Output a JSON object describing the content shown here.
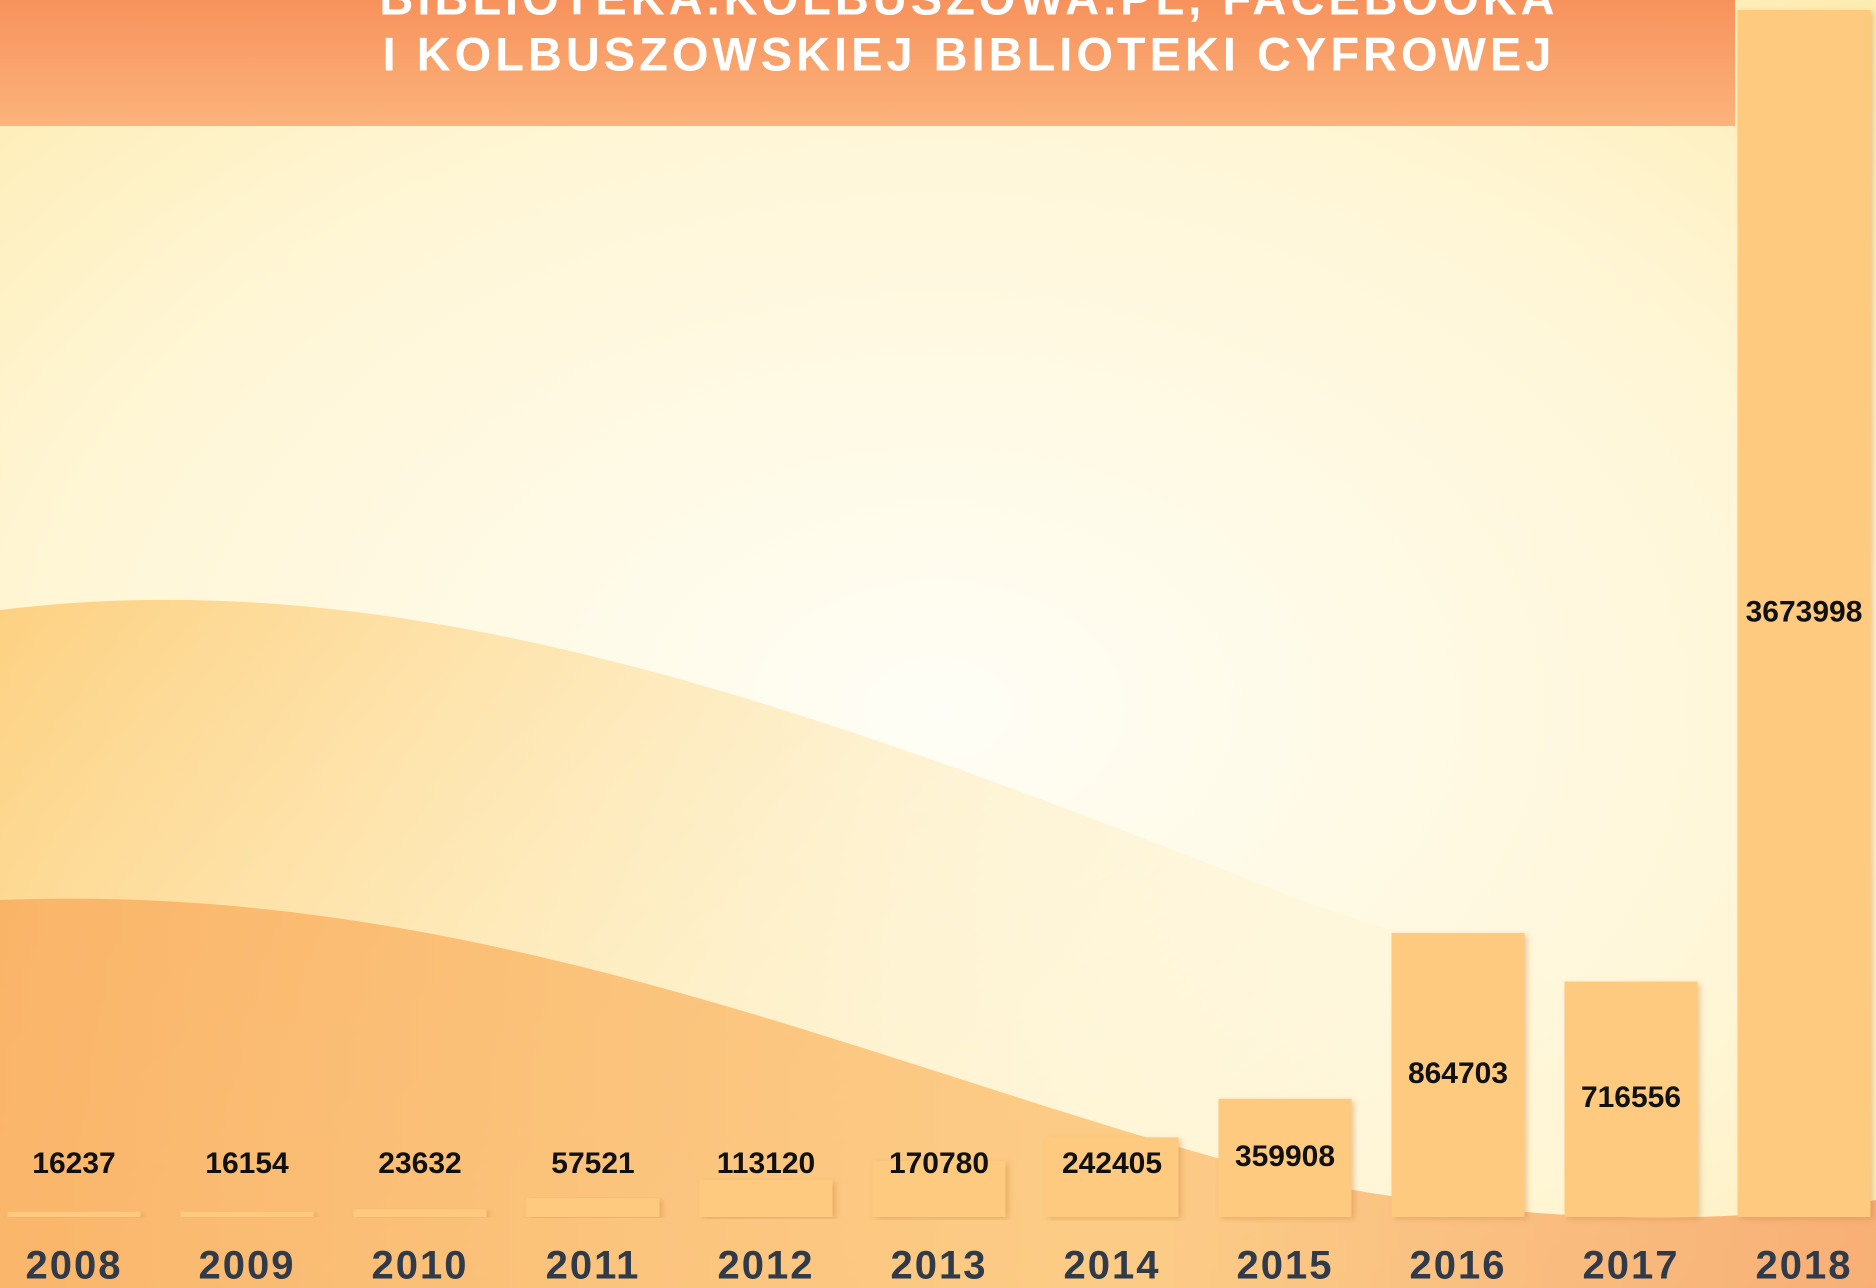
{
  "chart_data": {
    "type": "bar",
    "title": [
      "BIBLIOTEKA.KOLBUSZOWA.PL, FACEBOOKA",
      "I KOLBUSZOWSKIEJ BIBLIOTEKI CYFROWEJ"
    ],
    "categories": [
      "2008",
      "2009",
      "2010",
      "2011",
      "2012",
      "2013",
      "2014",
      "2015",
      "2016",
      "2017",
      "2018"
    ],
    "values": [
      16237,
      16154,
      23632,
      57521,
      113120,
      170780,
      242405,
      359908,
      864703,
      716556,
      3673998
    ],
    "color": "#fdca7f"
  }
}
